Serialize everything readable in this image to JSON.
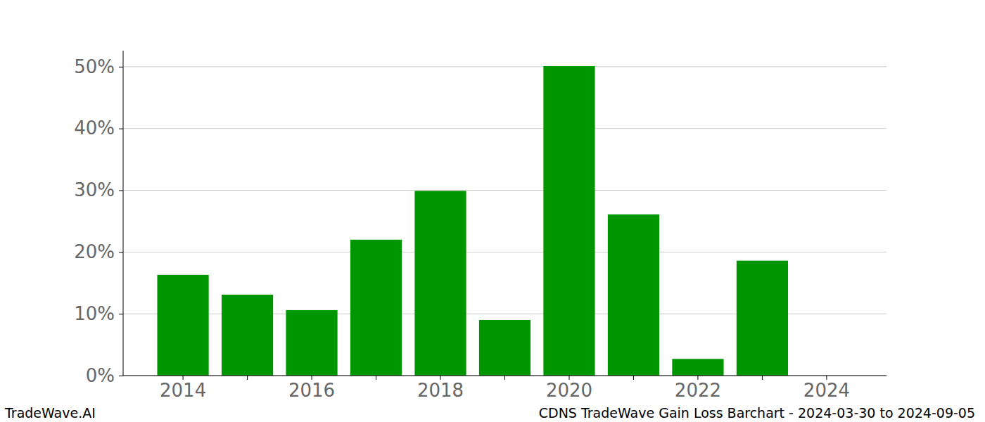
{
  "chart_data": {
    "type": "bar",
    "title": "CDNS TradeWave Gain Loss Barchart - 2024-03-30 to 2024-09-05",
    "annotations": [
      "TradeWave.AI"
    ],
    "categories": [
      "2014",
      null,
      "2016",
      null,
      "2018",
      null,
      "2020",
      null,
      "2022",
      null,
      "2024"
    ],
    "values": [
      16.3,
      13.1,
      10.6,
      22.0,
      29.9,
      9.0,
      50.1,
      26.1,
      2.7,
      18.6,
      null
    ],
    "color": "#009600",
    "ylim": [
      0,
      52.6
    ],
    "yticks": [
      {
        "value": 0,
        "label": "0%"
      },
      {
        "value": 10,
        "label": "10%"
      },
      {
        "value": 20,
        "label": "20%"
      },
      {
        "value": 30,
        "label": "30%"
      },
      {
        "value": 40,
        "label": "40%"
      },
      {
        "value": 50,
        "label": "50%"
      }
    ],
    "grid": true
  }
}
